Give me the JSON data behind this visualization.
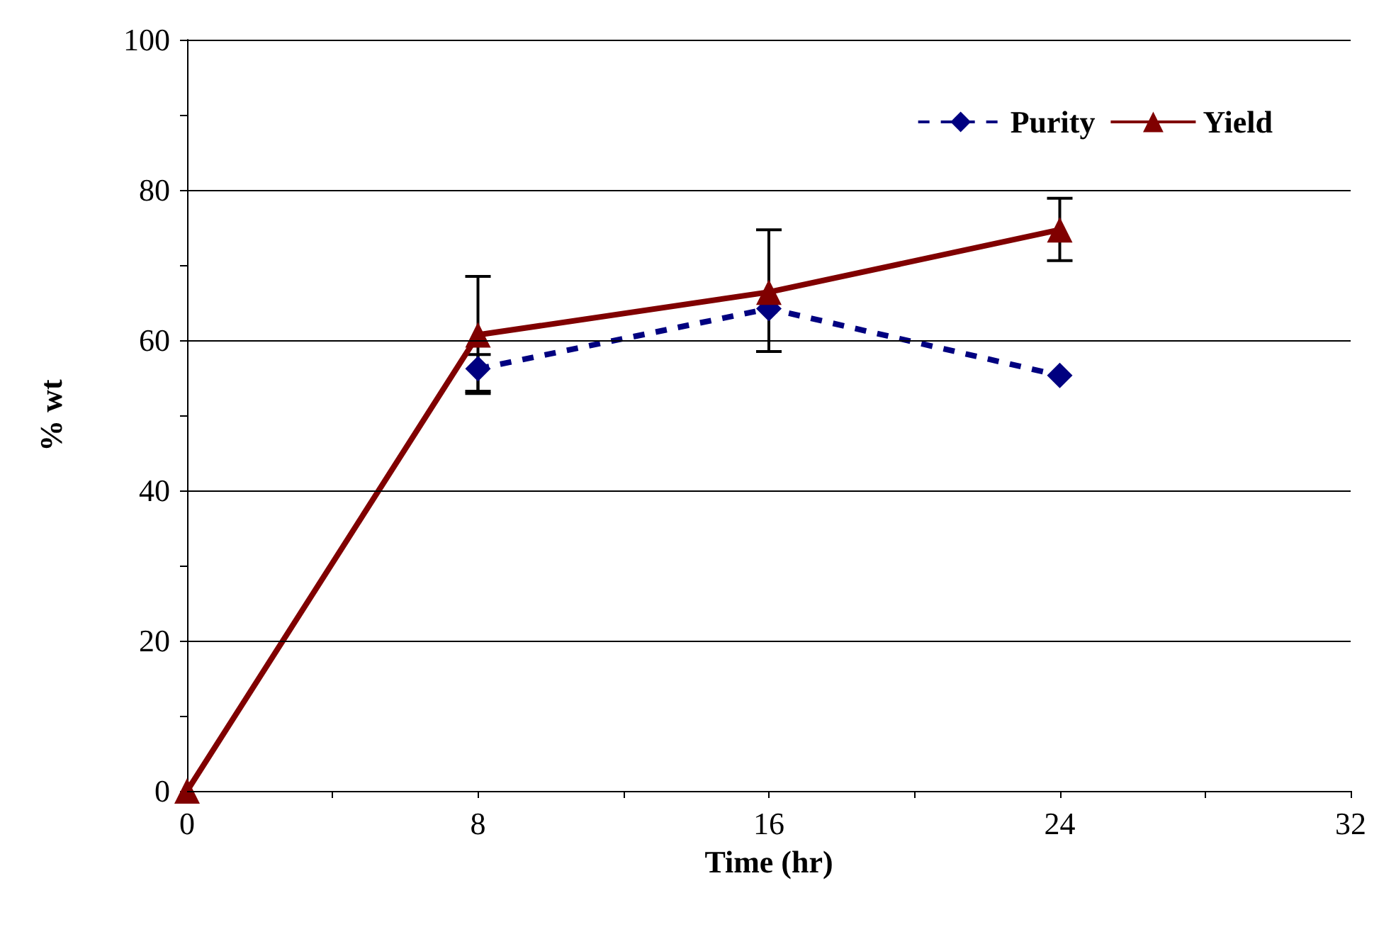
{
  "chart_data": {
    "type": "line",
    "xlabel": "Time (hr)",
    "ylabel": "% wt",
    "x": [
      0,
      8,
      16,
      24
    ],
    "series": [
      {
        "name": "Purity",
        "color": "#000080",
        "x": [
          8,
          16,
          24
        ],
        "values": [
          56.2,
          64.2,
          55.3
        ],
        "errors": [
          [
            53.2,
            58.1
          ],
          null,
          null
        ],
        "marker": "diamond",
        "line_style": "dashed"
      },
      {
        "name": "Yield",
        "color": "#800000",
        "values": [
          0,
          60.7,
          66.4,
          74.7
        ],
        "errors": [
          null,
          [
            52.9,
            68.5
          ],
          [
            58.5,
            74.7
          ],
          [
            70.6,
            78.9
          ]
        ],
        "marker": "triangle",
        "line_style": "solid"
      }
    ],
    "xlim": [
      0,
      32
    ],
    "xticks": [
      0,
      {
        "value": 4,
        "label": null
      },
      8,
      {
        "value": 12,
        "label": null
      },
      16,
      {
        "value": 20,
        "label": null
      },
      24,
      {
        "value": 28,
        "label": null
      },
      32
    ],
    "ylim": [
      0,
      100
    ],
    "yticks": [
      0,
      {
        "value": 10,
        "label": null
      },
      20,
      {
        "value": 30,
        "label": null
      },
      40,
      {
        "value": 50,
        "label": null
      },
      60,
      {
        "value": 70,
        "label": null
      },
      80,
      {
        "value": 90,
        "label": null
      },
      100
    ],
    "grid": "y",
    "legend": "top right"
  }
}
